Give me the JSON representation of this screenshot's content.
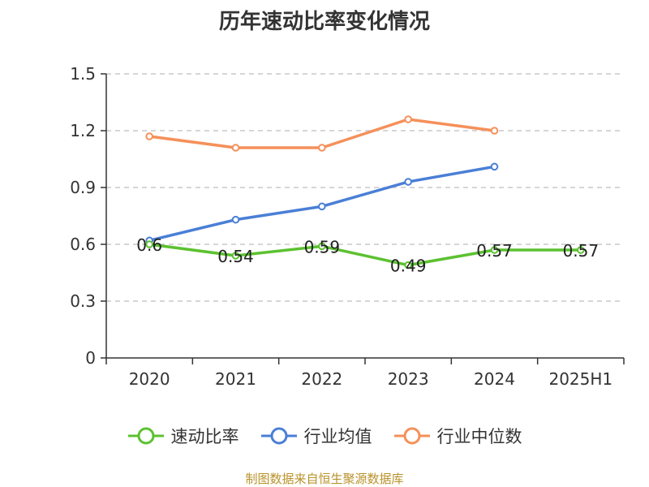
{
  "chart_data": {
    "type": "line",
    "title": "历年速动比率变化情况",
    "categories": [
      "2020",
      "2021",
      "2022",
      "2023",
      "2024",
      "2025H1"
    ],
    "ylim": [
      0,
      1.5
    ],
    "yticks": [
      0,
      0.3,
      0.6,
      0.9,
      1.2,
      1.5
    ],
    "ytick_labels": [
      "0",
      "0.3",
      "0.6",
      "0.9",
      "1.2",
      "1.5"
    ],
    "grid": true,
    "legend_position": "bottom",
    "series": [
      {
        "name": "速动比率",
        "color": "#5cc130",
        "values": [
          0.6,
          0.54,
          0.59,
          0.49,
          0.57,
          0.57
        ],
        "labels": [
          "0.6",
          "0.54",
          "0.59",
          "0.49",
          "0.57",
          "0.57"
        ]
      },
      {
        "name": "行业均值",
        "color": "#4a7fd6",
        "values": [
          0.62,
          0.73,
          0.8,
          0.93,
          1.01,
          null
        ]
      },
      {
        "name": "行业中位数",
        "color": "#f5905a",
        "values": [
          1.17,
          1.11,
          1.11,
          1.26,
          1.2,
          null
        ]
      }
    ]
  },
  "source": "制图数据来自恒生聚源数据库"
}
